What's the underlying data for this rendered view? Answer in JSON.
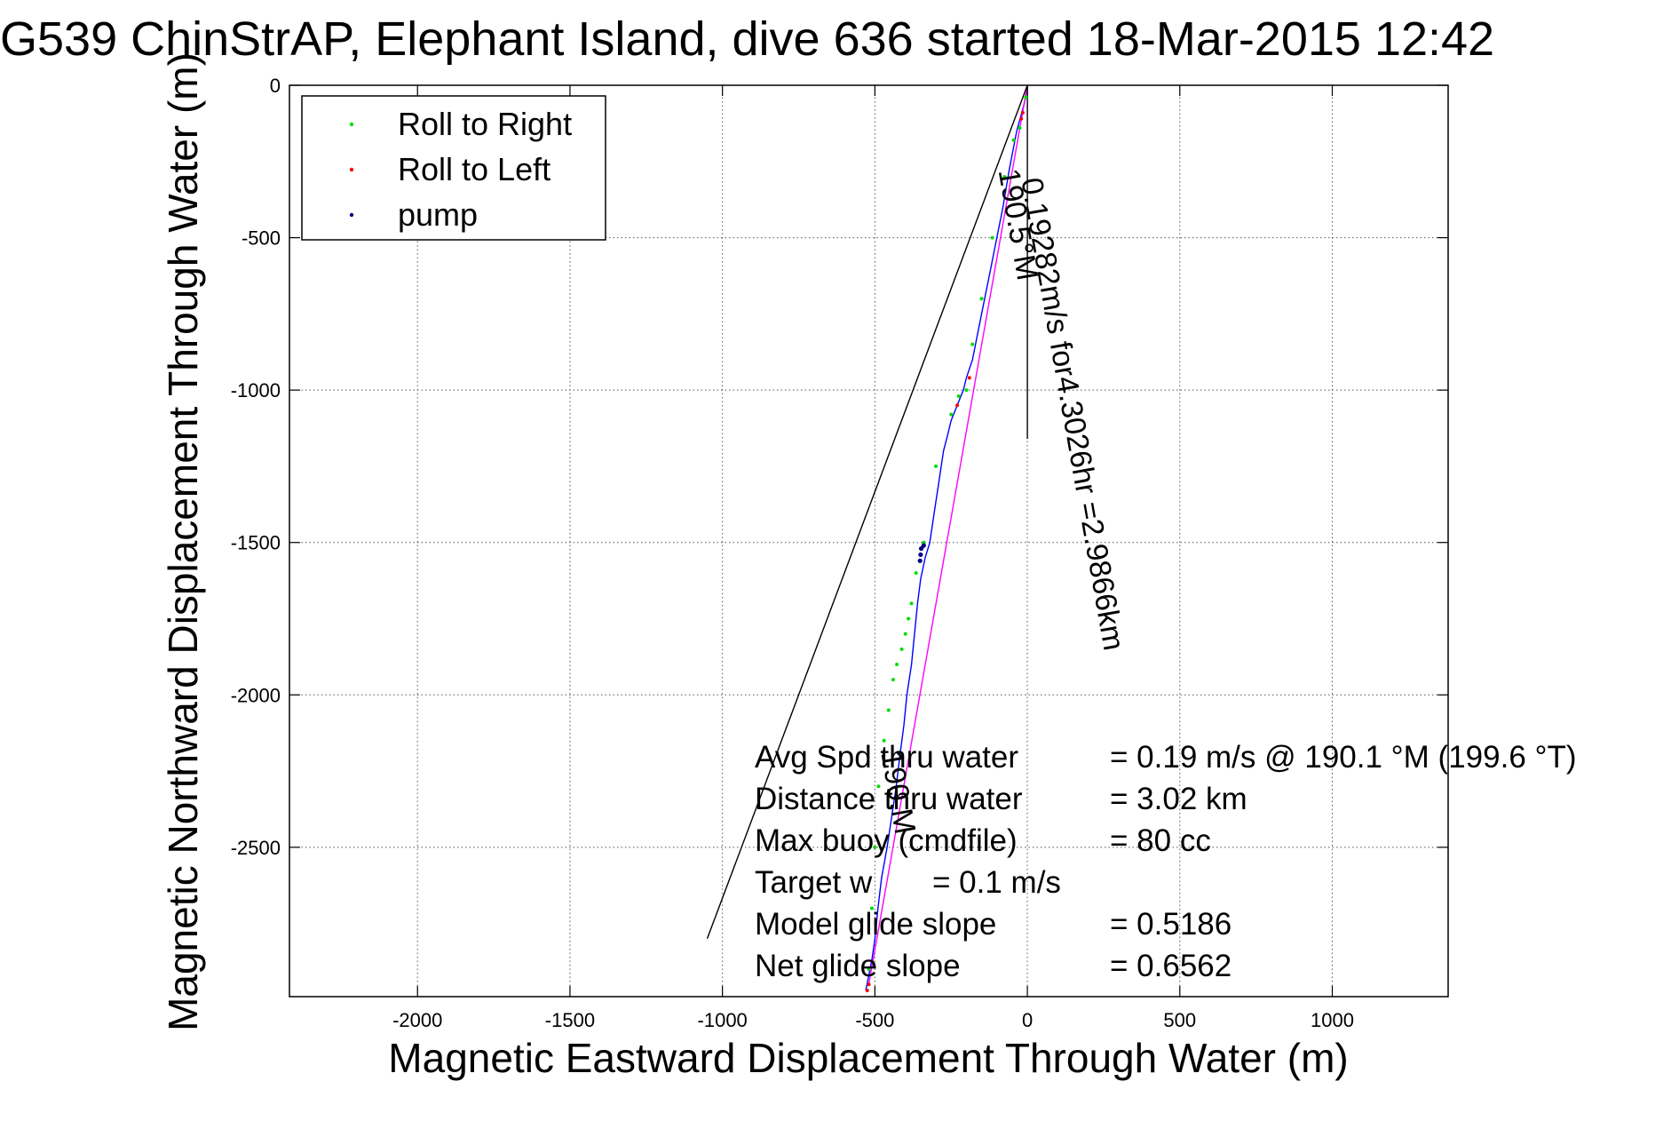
{
  "chart_data": {
    "type": "line",
    "title": "G539 ChinStrAP, Elephant Island, dive 636 started 18-Mar-2015 12:42",
    "xlabel": "Magnetic Eastward Displacement Through Water (m)",
    "ylabel": "Magnetic Northward Displacement Through Water (m)",
    "xlim": [
      -2420,
      1380
    ],
    "ylim": [
      -2990,
      0
    ],
    "xticks": [
      -2000,
      -1500,
      -1000,
      -500,
      0,
      500,
      1000
    ],
    "xtick_labels": [
      "-2000",
      "-1500",
      "-1000",
      "-500",
      "0",
      "500",
      "1000"
    ],
    "yticks": [
      0,
      -500,
      -1000,
      -1500,
      -2000,
      -2500
    ],
    "ytick_labels": [
      "0",
      "-500",
      "-1000",
      "-1500",
      "-2000",
      "-2500"
    ],
    "grid": true,
    "legend_position": "top-left",
    "legend": [
      {
        "label": "Roll to Right",
        "color": "#00dd00"
      },
      {
        "label": "Roll to Left",
        "color": "#ff0000"
      },
      {
        "label": "pump",
        "color": "#000080"
      }
    ],
    "series": [
      {
        "color": "#0000ff",
        "x": [
          0,
          -10,
          -35,
          -60,
          -80,
          -100,
          -120,
          -140,
          -160,
          -180,
          -200,
          -210,
          -230,
          -250,
          -262,
          -275,
          -290,
          -305,
          -320,
          -335,
          -350,
          -360,
          -370,
          -380,
          -395,
          -405,
          -418,
          -430,
          -445,
          -460,
          -478,
          -490,
          -500,
          -510,
          -520,
          -530
        ],
        "y": [
          0,
          -60,
          -150,
          -280,
          -400,
          -500,
          -600,
          -700,
          -800,
          -900,
          -960,
          -1000,
          -1050,
          -1100,
          -1150,
          -1200,
          -1300,
          -1400,
          -1500,
          -1550,
          -1620,
          -1700,
          -1800,
          -1900,
          -2000,
          -2100,
          -2200,
          -2300,
          -2400,
          -2500,
          -2600,
          -2700,
          -2800,
          -2870,
          -2920,
          -2970
        ]
      },
      {
        "color": "#ff00ff",
        "x": [
          0,
          -520
        ],
        "y": [
          0,
          -2950
        ]
      },
      {
        "color": "#000000",
        "x": [
          0,
          -1050
        ],
        "y": [
          0,
          -2800
        ]
      },
      {
        "color": "#000000",
        "x": [
          0,
          0
        ],
        "y": [
          0,
          -1160
        ]
      }
    ],
    "markers": {
      "roll_right": {
        "color": "#00dd00",
        "x": [
          -5,
          -25,
          -45,
          -75,
          -115,
          -150,
          -180,
          -200,
          -225,
          -250,
          -300,
          -340,
          -365,
          -380,
          -390,
          -400,
          -412,
          -428,
          -440,
          -455,
          -470,
          -488,
          -500,
          -510,
          -520
        ],
        "y": [
          -40,
          -140,
          -180,
          -300,
          -500,
          -700,
          -850,
          -1000,
          -1020,
          -1080,
          -1250,
          -1500,
          -1600,
          -1700,
          -1750,
          -1800,
          -1850,
          -1900,
          -1950,
          -2050,
          -2150,
          -2300,
          -2500,
          -2700,
          -2900
        ]
      },
      "roll_left": {
        "color": "#ff0000",
        "x": [
          -15,
          -20,
          -190,
          -230,
          -520,
          -525
        ],
        "y": [
          -90,
          -110,
          -960,
          -1050,
          -2950,
          -2970
        ]
      },
      "pump": {
        "color": "#000080",
        "x": [
          -348,
          -350,
          -352,
          -340
        ],
        "y": [
          -1520,
          -1540,
          -1560,
          -1510
        ]
      }
    },
    "line_annotations": [
      {
        "text": "0.19282m/s for4.3026hr =2.9866km",
        "x": -20,
        "y": -310,
        "angle_deg": 80
      },
      {
        "text": "190.5°M",
        "x": -95,
        "y": -280,
        "angle_deg": 80
      },
      {
        "text": "190.M",
        "x": -480,
        "y": -2190,
        "angle_deg": 80
      }
    ],
    "info_text": [
      {
        "label": "Avg Spd thru water",
        "value": "=  0.19 m/s @ 190.1 °M (199.6 °T)"
      },
      {
        "label": "Distance thru water",
        "value": "=  3.02 km"
      },
      {
        "label": "Max buoy (cmdfile)",
        "value": "= 80 cc"
      },
      {
        "label": "Target w",
        "value": "= 0.1 m/s"
      },
      {
        "label": "Model glide slope",
        "value": "= 0.5186"
      },
      {
        "label": "Net glide slope",
        "value": "= 0.6562"
      }
    ]
  }
}
